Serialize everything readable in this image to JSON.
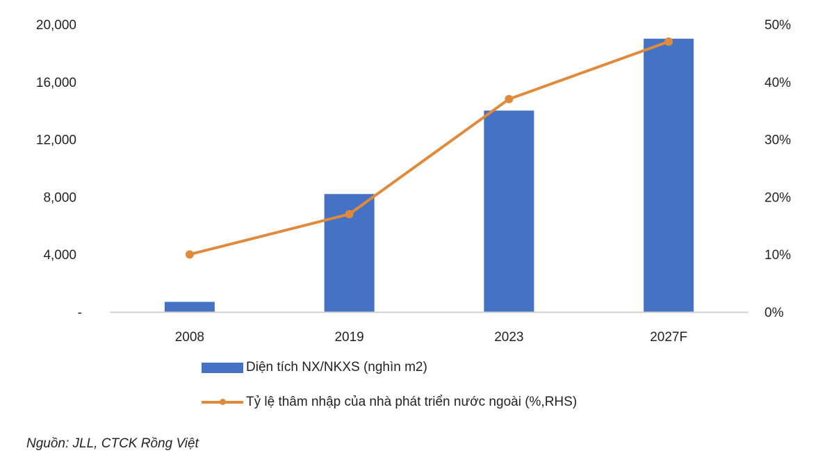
{
  "chart_data": {
    "type": "bar+line",
    "categories": [
      "2008",
      "2019",
      "2023",
      "2027F"
    ],
    "series": [
      {
        "name": "Diện tích NX/NKXS (nghìn m2)",
        "type": "bar",
        "axis": "left",
        "values": [
          700,
          8200,
          14000,
          19000
        ],
        "color": "#4472c4"
      },
      {
        "name": "Tỷ lệ thâm nhập của nhà phát triển nước ngoài (%,RHS)",
        "type": "line",
        "axis": "right",
        "values": [
          10,
          17,
          37,
          47
        ],
        "color": "#e08a3c"
      }
    ],
    "y_left": {
      "ylim": [
        0,
        20000
      ],
      "ticks": [
        "-",
        "4,000",
        "8,000",
        "12,000",
        "16,000",
        "20,000"
      ]
    },
    "y_right": {
      "ylim": [
        0,
        50
      ],
      "ticks": [
        "0%",
        "10%",
        "20%",
        "30%",
        "40%",
        "50%"
      ]
    },
    "grid": false,
    "legend_placement": "bottom"
  },
  "source": "Nguồn: JLL, CTCK Rồng Việt"
}
